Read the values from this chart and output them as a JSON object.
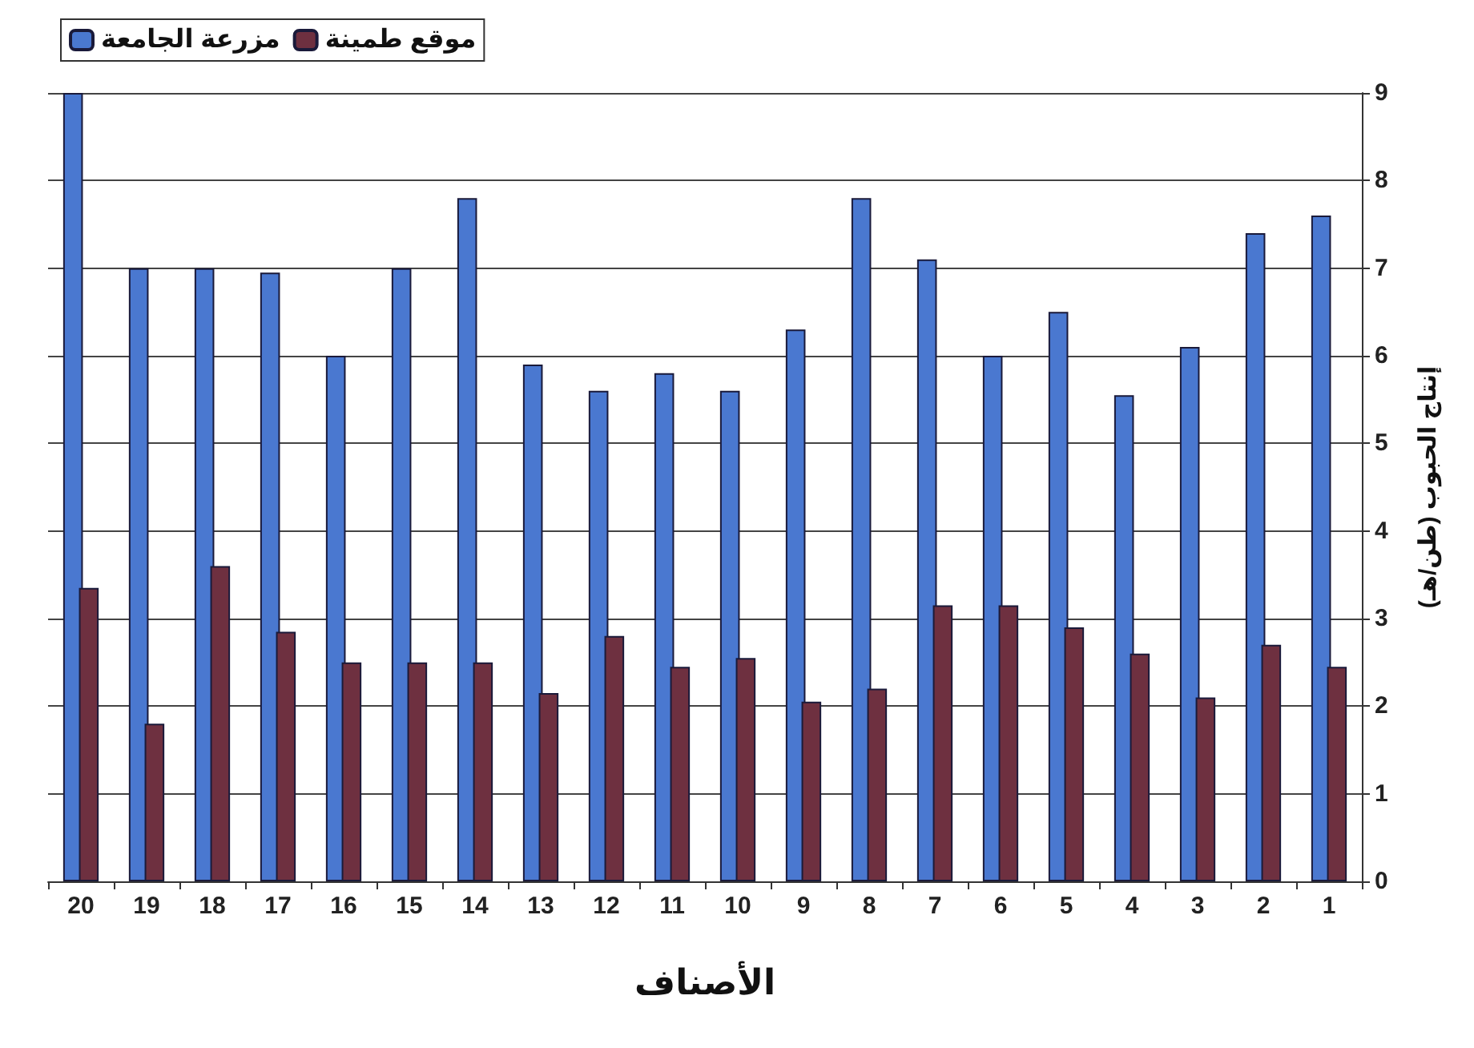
{
  "chart_data": {
    "type": "bar",
    "xlabel": "الأصناف",
    "ylabel": "إنتاج الحبوب (طن/هـ)",
    "categories": [
      "20",
      "19",
      "18",
      "17",
      "16",
      "15",
      "14",
      "13",
      "12",
      "11",
      "10",
      "9",
      "8",
      "7",
      "6",
      "5",
      "4",
      "3",
      "2",
      "1"
    ],
    "series": [
      {
        "name": "مزرعة الجامعة",
        "color": "#4a78d0",
        "values": [
          9.0,
          7.0,
          7.0,
          6.95,
          6.0,
          7.0,
          7.8,
          5.9,
          5.6,
          5.8,
          5.6,
          6.3,
          7.8,
          7.1,
          6.0,
          6.5,
          5.55,
          6.1,
          7.4,
          7.6
        ]
      },
      {
        "name": "موقع طمينة",
        "color": "#6e3040",
        "values": [
          3.35,
          1.8,
          3.6,
          2.85,
          2.5,
          2.5,
          2.5,
          2.15,
          2.8,
          2.45,
          2.55,
          2.05,
          2.2,
          3.15,
          3.15,
          2.9,
          2.6,
          2.1,
          2.7,
          2.45
        ]
      }
    ],
    "ylim": [
      0,
      9
    ],
    "yticks": [
      0,
      1,
      2,
      3,
      4,
      5,
      6,
      7,
      8,
      9
    ],
    "grid": "y",
    "legend": "top left"
  }
}
